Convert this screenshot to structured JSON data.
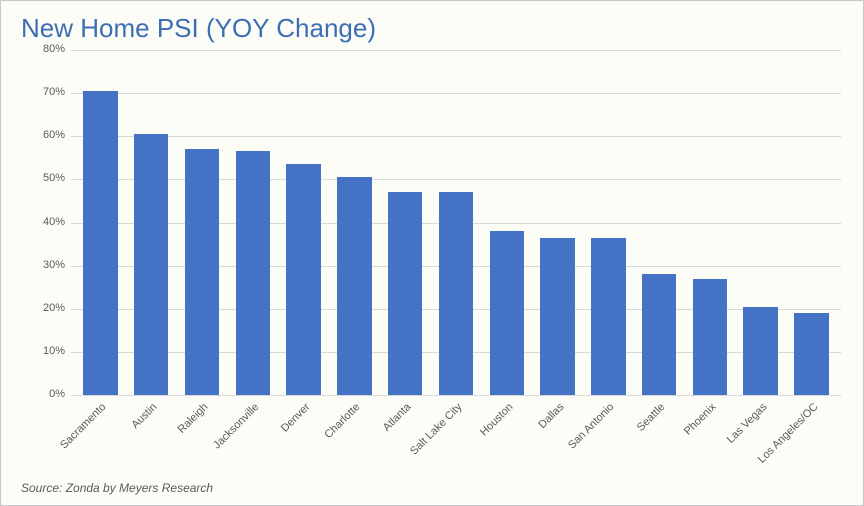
{
  "chart": {
    "type": "bar",
    "title": "New Home PSI (YOY Change)",
    "title_color": "#3d6eb4",
    "title_fontsize": 26,
    "background_color": "#fdfdf7",
    "border_color": "#c7c7c7",
    "grid_color": "#d9d9d9",
    "axis_label_color": "#595959",
    "axis_label_fontsize": 11,
    "y_unit_suffix": "%",
    "ylim": [
      0,
      80
    ],
    "ytick_step": 10,
    "bar_color": "#4472c4",
    "bar_width_ratio": 0.68,
    "categories": [
      "Sacramento",
      "Austin",
      "Raleigh",
      "Jacksonville",
      "Denver",
      "Charlotte",
      "Atlanta",
      "Salt Lake City",
      "Houston",
      "Dallas",
      "San Antonio",
      "Seattle",
      "Phoenix",
      "Las Vegas",
      "Los Angeles/OC"
    ],
    "values": [
      70.5,
      60.5,
      57,
      56.5,
      53.5,
      50.5,
      47,
      47,
      38,
      36.5,
      36.5,
      28,
      27,
      20.5,
      19
    ],
    "source": "Source: Zonda by Meyers Research",
    "source_color": "#595959",
    "source_fontsize": 12,
    "x_label_rotation_deg": -45
  }
}
